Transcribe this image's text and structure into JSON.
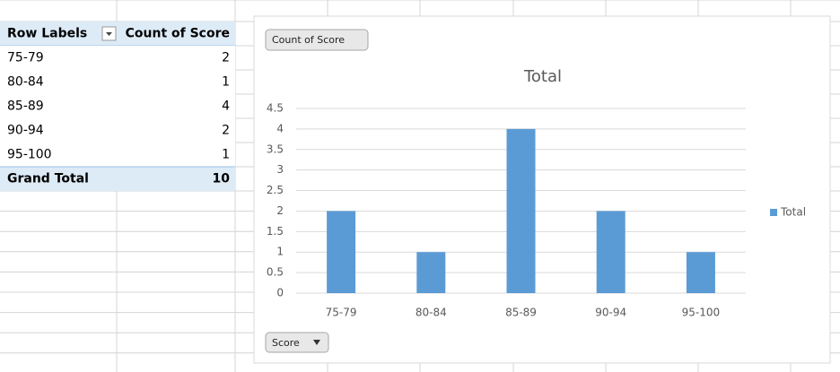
{
  "pivot_table": {
    "headers": [
      "Row Labels",
      "Count of Score"
    ],
    "rows": [
      [
        "75-79",
        2
      ],
      [
        "80-84",
        1
      ],
      [
        "85-89",
        4
      ],
      [
        "90-94",
        2
      ],
      [
        "95-100",
        1
      ]
    ],
    "total": [
      "Grand Total",
      10
    ]
  },
  "chart_data": {
    "type": "bar",
    "title": "Total",
    "value_field_button": "Count of Score",
    "axis_field_button": "Score",
    "categories": [
      "75-79",
      "80-84",
      "85-89",
      "90-94",
      "95-100"
    ],
    "series": [
      {
        "name": "Total",
        "color": "#5b9bd5",
        "values": [
          2,
          1,
          4,
          2,
          1
        ]
      }
    ],
    "ylim": [
      0,
      4.5
    ],
    "yticks": [
      0,
      0.5,
      1,
      1.5,
      2,
      2.5,
      3,
      3.5,
      4,
      4.5
    ],
    "grid": true,
    "legend": "right"
  }
}
